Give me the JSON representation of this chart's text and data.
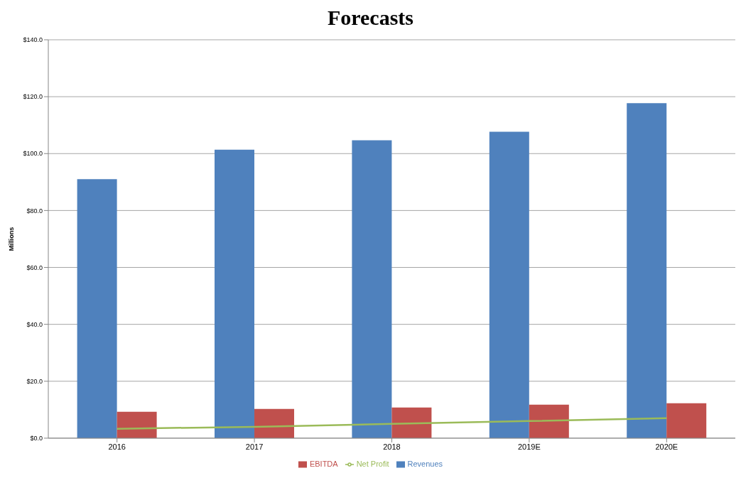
{
  "chart_data": {
    "type": "bar",
    "title": "Forecasts",
    "ylabel": "Millions",
    "categories": [
      "2016",
      "2017",
      "2018",
      "2019E",
      "2020E"
    ],
    "series": [
      {
        "name": "Revenues",
        "color": "#4f81bd",
        "values": [
          91.0,
          101.4,
          104.7,
          107.7,
          117.7
        ]
      },
      {
        "name": "EBITDA",
        "color": "#c0504d",
        "values": [
          9.3,
          10.3,
          10.8,
          11.8,
          12.3
        ]
      },
      {
        "name": "Net Profit",
        "type": "line",
        "color": "#9bbb59",
        "values": [
          3.3,
          4.0,
          5.0,
          6.0,
          7.0
        ]
      }
    ],
    "ylim": [
      0,
      140
    ],
    "yticks": [
      {
        "value": 0,
        "label": "$0.0"
      },
      {
        "value": 20,
        "label": "$20.0"
      },
      {
        "value": 40,
        "label": "$40.0"
      },
      {
        "value": 60,
        "label": "$60.0"
      },
      {
        "value": 80,
        "label": "$80.0"
      },
      {
        "value": 100,
        "label": "$100.0"
      },
      {
        "value": 120,
        "label": "$120.0"
      },
      {
        "value": 140,
        "label": "$140.0"
      }
    ],
    "grid": "y",
    "legend": "bottom",
    "marker": "none"
  }
}
